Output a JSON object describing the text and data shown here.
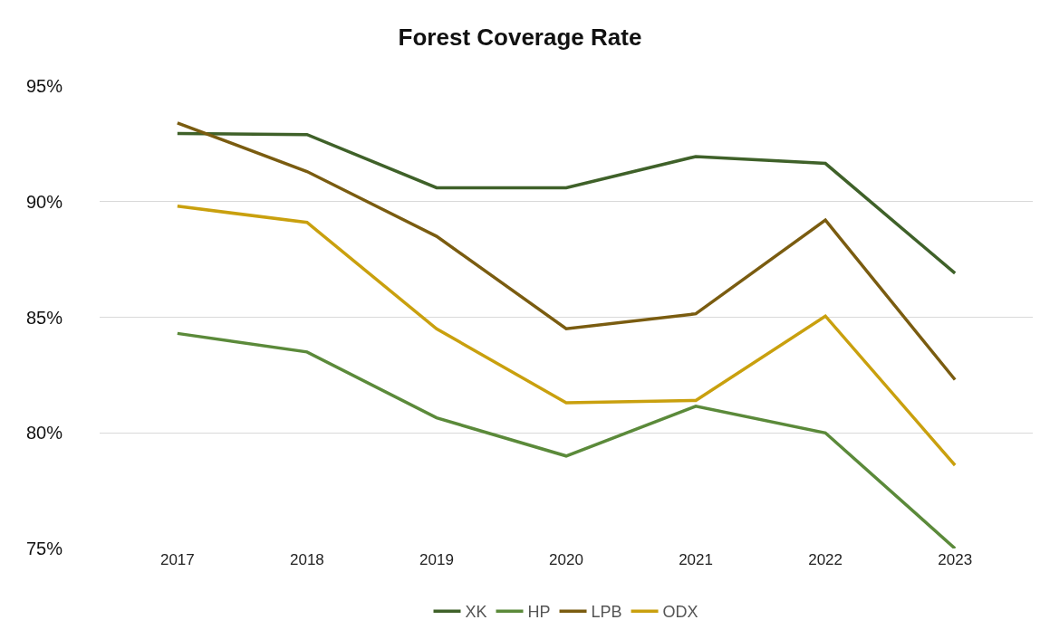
{
  "chart_data": {
    "type": "line",
    "title": "Forest Coverage Rate",
    "categories": [
      "2017",
      "2018",
      "2019",
      "2020",
      "2021",
      "2022",
      "2023"
    ],
    "series": [
      {
        "name": "XK",
        "color": "#3f6129",
        "values": [
          92.95,
          92.9,
          90.6,
          90.6,
          91.95,
          91.65,
          86.9
        ]
      },
      {
        "name": "HP",
        "color": "#5b8a3a",
        "values": [
          84.3,
          83.5,
          80.65,
          79.0,
          81.15,
          80.0,
          75.0
        ]
      },
      {
        "name": "LPB",
        "color": "#7a5c10",
        "values": [
          93.4,
          91.3,
          88.5,
          84.5,
          85.15,
          89.2,
          82.3
        ]
      },
      {
        "name": "ODX",
        "color": "#c9a00e",
        "values": [
          89.8,
          89.1,
          84.5,
          81.3,
          81.4,
          85.05,
          78.6
        ]
      }
    ],
    "ylim": [
      75,
      95
    ],
    "yticks": [
      {
        "value": 75,
        "label": "75%"
      },
      {
        "value": 80,
        "label": "80%"
      },
      {
        "value": 85,
        "label": "85%"
      },
      {
        "value": 90,
        "label": "90%"
      },
      {
        "value": 95,
        "label": "95%"
      }
    ],
    "grid": "y",
    "legend": "bottom",
    "marker": "none",
    "line_style": "solid"
  }
}
